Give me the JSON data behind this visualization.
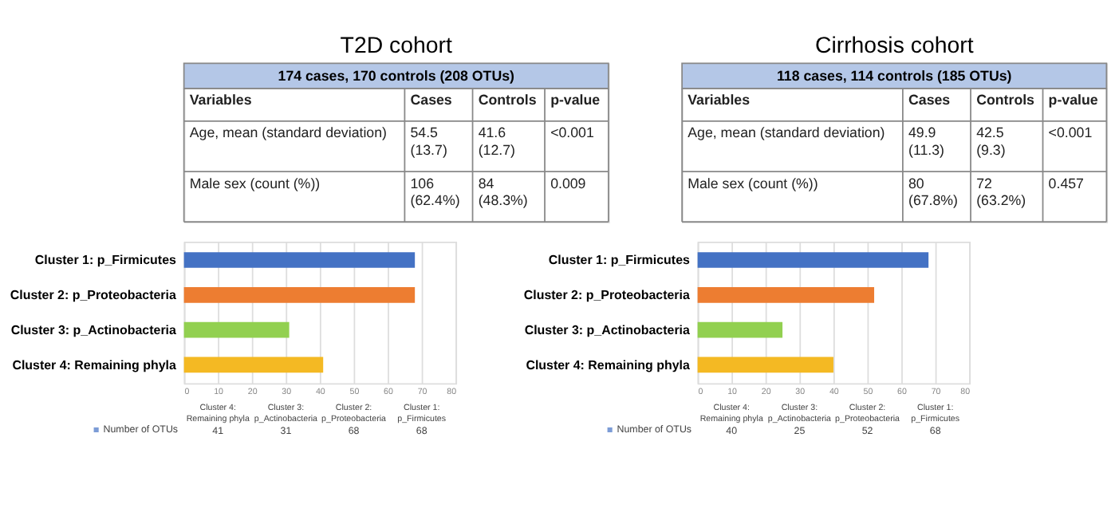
{
  "chart_data": [
    {
      "type": "other",
      "title": "T2D cohort",
      "subtitle": "174 cases, 170 controls (208 OTUs)",
      "categories": [
        "Variables",
        "Cases",
        "Controls",
        "p-value"
      ],
      "cell_labels": [
        [
          "Age, mean (standard deviation)",
          "54.5 (13.7)",
          "41.6 (12.7)",
          "<0.001"
        ],
        [
          "Male sex (count (%))",
          "106 (62.4%)",
          "84 (48.3%)",
          "0.009"
        ]
      ]
    },
    {
      "type": "other",
      "title": "Cirrhosis cohort",
      "subtitle": "118 cases, 114 controls (185 OTUs)",
      "categories": [
        "Variables",
        "Cases",
        "Controls",
        "p-value"
      ],
      "cell_labels": [
        [
          "Age, mean (standard deviation)",
          "49.9 (11.3)",
          "42.5 (9.3)",
          "<0.001"
        ],
        [
          "Male sex (count (%))",
          "80 (67.8%)",
          "72 (63.2%)",
          "0.457"
        ]
      ]
    },
    {
      "type": "bar",
      "orientation": "horizontal",
      "categories": [
        "Cluster 1: p_Firmicutes",
        "Cluster 2: p_Proteobacteria",
        "Cluster 3: p_Actinobacteria",
        "Cluster 4: Remaining phyla"
      ],
      "series": [
        {
          "name": "Number of OTUs",
          "values": [
            68,
            68,
            31,
            41
          ]
        }
      ],
      "colors": [
        "#4472c4",
        "#ed7d31",
        "#92d050",
        "#f4b923"
      ],
      "xlim": [
        0,
        80
      ],
      "xticks": [
        0,
        10,
        20,
        30,
        40,
        50,
        60,
        70,
        80
      ],
      "grid": "x",
      "legend": "bottom"
    },
    {
      "type": "other",
      "categories": [
        "Cluster 4: Remaining phyla",
        "Cluster 3: p_Actinobacteria",
        "Cluster 2: p_Proteobacteria",
        "Cluster 1: p_Firmicutes"
      ],
      "cell_labels": [
        [
          "41",
          "31",
          "68",
          "68"
        ]
      ]
    },
    {
      "type": "bar",
      "orientation": "horizontal",
      "categories": [
        "Cluster 1: p_Firmicutes",
        "Cluster 2: p_Proteobacteria",
        "Cluster 3: p_Actinobacteria",
        "Cluster 4: Remaining phyla"
      ],
      "series": [
        {
          "name": "Number of OTUs",
          "values": [
            68,
            52,
            25,
            40
          ]
        }
      ],
      "colors": [
        "#4472c4",
        "#ed7d31",
        "#92d050",
        "#f4b923"
      ],
      "xlim": [
        0,
        80
      ],
      "xticks": [
        0,
        10,
        20,
        30,
        40,
        50,
        60,
        70,
        80
      ],
      "grid": "x",
      "legend": "bottom"
    },
    {
      "type": "other",
      "categories": [
        "Cluster 4: Remaining phyla",
        "Cluster 3: p_Actinobacteria",
        "Cluster 2: p_Proteobacteria",
        "Cluster 1: p_Firmicutes"
      ],
      "cell_labels": [
        [
          "40",
          "25",
          "52",
          "68"
        ]
      ]
    }
  ]
}
